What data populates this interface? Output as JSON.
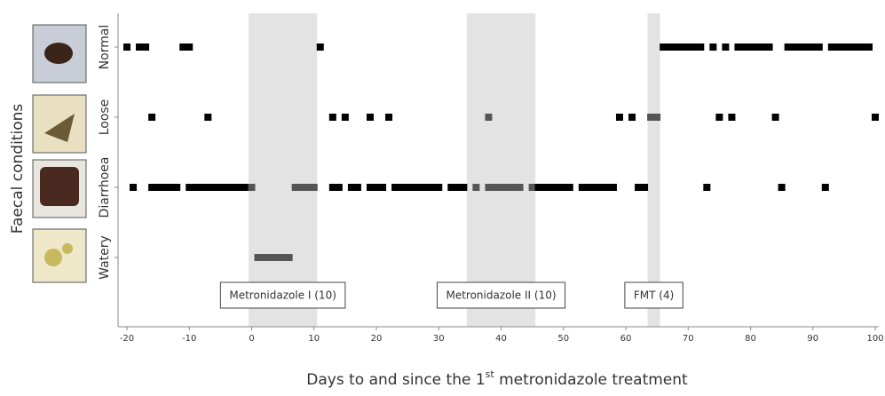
{
  "chart_data": {
    "type": "timeline",
    "ylabel": "Faecal conditions",
    "xlabel_parts": [
      "Days to and since the 1",
      "st",
      " metronidazole treatment"
    ],
    "categories": [
      "Normal",
      "Loose",
      "Diarrhoea",
      "Watery"
    ],
    "series": [
      {
        "name": "Normal",
        "x": [
          -20,
          -18,
          -17,
          -11,
          -10,
          11,
          66,
          67,
          68,
          69,
          70,
          71,
          72,
          74,
          76,
          78,
          79,
          80,
          81,
          82,
          83,
          86,
          87,
          88,
          89,
          90,
          91,
          93,
          94,
          95,
          96,
          97,
          98,
          99
        ]
      },
      {
        "name": "Loose",
        "x": [
          -16,
          -7,
          13,
          15,
          19,
          22,
          38,
          59,
          61,
          64,
          65,
          75,
          77,
          84,
          100
        ]
      },
      {
        "name": "Diarrhoea",
        "x": [
          -19,
          -16,
          -15,
          -14,
          -13,
          -12,
          -10,
          -9,
          -8,
          -7,
          -6,
          -5,
          -4,
          -3,
          -2,
          -1,
          0,
          7,
          8,
          9,
          10,
          13,
          14,
          16,
          17,
          19,
          20,
          21,
          23,
          24,
          25,
          26,
          27,
          28,
          29,
          30,
          32,
          33,
          34,
          36,
          38,
          39,
          40,
          41,
          42,
          43,
          45,
          46,
          47,
          48,
          49,
          50,
          51,
          53,
          54,
          55,
          56,
          57,
          58,
          62,
          63,
          73,
          85,
          92
        ]
      },
      {
        "name": "Watery",
        "x": [
          1,
          2,
          3,
          4,
          5,
          6
        ]
      }
    ],
    "periods": [
      {
        "label": "Metronidazole I (10)",
        "start": -0.5,
        "end": 10.5
      },
      {
        "label": "Metronidazole II (10)",
        "start": 34.5,
        "end": 45.5
      },
      {
        "label": "FMT (4)",
        "start": 63.5,
        "end": 65.5
      }
    ],
    "marker_color": "#000000",
    "treatment_marker_color": "#555555",
    "period_color": "#e3e3e3",
    "xlim": [
      -20,
      100
    ],
    "xticks": [
      -20,
      -10,
      0,
      10,
      20,
      30,
      40,
      50,
      60,
      70,
      80,
      90,
      100
    ]
  }
}
